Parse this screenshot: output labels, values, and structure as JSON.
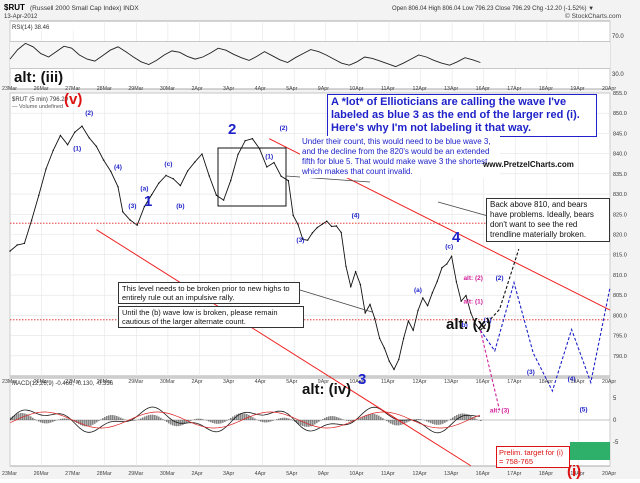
{
  "header": {
    "symbol": "$RUT",
    "name": "(Russell 2000 Small Cap Index) INDX",
    "date": "13-Apr-2012",
    "quote": "Open 806.04   High 806.04   Low 796.23   Close 796.29   Chg -12.20 (-1.52%) ▼",
    "copyright": "© StockCharts.com"
  },
  "rsi_panel": {
    "label": "RSI(14) 38.46",
    "ticks": [
      "70.0",
      "30.0"
    ]
  },
  "price_panel": {
    "label": "$RUT (5 min) 796.29",
    "legend": "— Volume undefined"
  },
  "macd_panel": {
    "label": "MACD(12,26,9) -0.466, -0.130, -0.336",
    "ticks": [
      "5",
      "0",
      "-5"
    ]
  },
  "annotations": {
    "alt_iii": "alt: (iii)",
    "v_label": "(v)",
    "wave_1": "1",
    "wave_2": "2",
    "wave_3": "3",
    "wave_4": "4",
    "wave_iv": "alt: (iv)",
    "alt_x": "alt: (x)",
    "final_i": "(i)",
    "note_main": "A *lot* of Ellioticians are calling the wave I've labeled as blue 3 as the end of the larger red (i).  Here's why I'm not labeling it that way.",
    "note_count": "Under their count, this would need to be blue wave 3, and the decline from the 820's would be an extended fifth for blue 5.  That would make wave 3 the shortest, which makes that count invalid.",
    "url": "www.PretzelCharts.com",
    "note_right": "Back above 810, and bears have problems.  Ideally, bears don't want to see the red trendline materially broken.",
    "note_level": "This level needs to be broken prior to new highs to entirely rule out an impulsive rally.",
    "note_until": "Until the (b) wave low is broken, please remain cautious of the larger alternate count.",
    "target": "Prelim. target for (i) = 758-765"
  },
  "chart_data": {
    "type": "line",
    "title": "$RUT (Russell 2000 Small Cap Index) INDX",
    "x_dates": [
      "23Mar",
      "26Mar",
      "27Mar",
      "28Mar",
      "29Mar",
      "30Mar",
      "2Apr",
      "3Apr",
      "4Apr",
      "5Apr",
      "9Apr",
      "10Apr",
      "11Apr",
      "12Apr",
      "13Apr",
      "16Apr",
      "17Apr",
      "18Apr",
      "19Apr",
      "20Apr"
    ],
    "ylim": [
      785,
      855
    ],
    "y_ticks": [
      790,
      795,
      800,
      805,
      810,
      815,
      820,
      825,
      830,
      835,
      840,
      845,
      850,
      855
    ],
    "grid": true,
    "price": [
      [
        0,
        815.9
      ],
      [
        3,
        817.4
      ],
      [
        6,
        817.8
      ],
      [
        9,
        823.5
      ],
      [
        12,
        829.7
      ],
      [
        15,
        836.2
      ],
      [
        18,
        840.8
      ],
      [
        21,
        844.5
      ],
      [
        24,
        842.2
      ],
      [
        27,
        845.3
      ],
      [
        30,
        846.8
      ],
      [
        33,
        843.9
      ],
      [
        36,
        841.8
      ],
      [
        39,
        838.4
      ],
      [
        42,
        835.6
      ],
      [
        45,
        831.8
      ],
      [
        47,
        825.6
      ],
      [
        50,
        823.6
      ],
      [
        53,
        822.3
      ],
      [
        56,
        826.9
      ],
      [
        59,
        829.8
      ],
      [
        62,
        832.7
      ],
      [
        65,
        834.6
      ],
      [
        68,
        833.8
      ],
      [
        71,
        832.1
      ],
      [
        74,
        835.7
      ],
      [
        77,
        837.9
      ],
      [
        80,
        839.9
      ],
      [
        83,
        834.5
      ],
      [
        86,
        829.7
      ],
      [
        89,
        828.5
      ],
      [
        92,
        833.4
      ],
      [
        95,
        839.8
      ],
      [
        98,
        843.2
      ],
      [
        101,
        843.7
      ],
      [
        104,
        841.2
      ],
      [
        107,
        836.7
      ],
      [
        110,
        837.8
      ],
      [
        113,
        834.4
      ],
      [
        116,
        833.3
      ],
      [
        118,
        824.7
      ],
      [
        120,
        822.5
      ],
      [
        122,
        818.8
      ],
      [
        124,
        818.6
      ],
      [
        126,
        820.4
      ],
      [
        128,
        821.7
      ],
      [
        130,
        822.5
      ],
      [
        132,
        823.3
      ],
      [
        134,
        822.0
      ],
      [
        136,
        822.1
      ],
      [
        138,
        820.5
      ],
      [
        140,
        812.1
      ],
      [
        142,
        807.1
      ],
      [
        144,
        810.8
      ],
      [
        146,
        807.6
      ],
      [
        148,
        800.6
      ],
      [
        150,
        802.7
      ],
      [
        152,
        799.2
      ],
      [
        154,
        794.3
      ],
      [
        156,
        791.9
      ],
      [
        158,
        788.7
      ],
      [
        160,
        786.6
      ],
      [
        162,
        789.1
      ],
      [
        164,
        794.3
      ],
      [
        166,
        798.6
      ],
      [
        168,
        796.3
      ],
      [
        170,
        801.2
      ],
      [
        172,
        804.3
      ],
      [
        174,
        802.4
      ],
      [
        176,
        805.6
      ],
      [
        178,
        808.4
      ],
      [
        180,
        811.8
      ],
      [
        182,
        812.7
      ],
      [
        184,
        814.6
      ],
      [
        186,
        808.3
      ],
      [
        188,
        803.5
      ],
      [
        190,
        804.9
      ],
      [
        192,
        800.6
      ],
      [
        194,
        797.8
      ],
      [
        196,
        796.3
      ]
    ],
    "projection": [
      {
        "name": "primary",
        "color": "#1e22c8",
        "points": [
          [
            196,
            796.3
          ],
          [
            202,
            791.2
          ],
          [
            210,
            808.1
          ],
          [
            218,
            790.7
          ],
          [
            226,
            781.3
          ],
          [
            234,
            796.5
          ],
          [
            242,
            783.4
          ],
          [
            250,
            806.9
          ]
        ]
      },
      {
        "name": "alternate",
        "color": "#111111",
        "points": [
          [
            196,
            796.3
          ],
          [
            204,
            801.5
          ],
          [
            212,
            816.4
          ]
        ]
      },
      {
        "name": "alt-c",
        "color": "#d0209a",
        "points": [
          [
            196,
            796.3
          ],
          [
            204,
            776.5
          ]
        ]
      }
    ],
    "trendlines": [
      {
        "color": "#ee2020",
        "from": [
          108,
          843.7
        ],
        "to": [
          250,
          801.3
        ]
      },
      {
        "color": "#ee2020",
        "from": [
          36,
          821.2
        ],
        "to": [
          192,
          762.8
        ]
      }
    ],
    "levels": [
      {
        "color": "#dd2222",
        "style": "dotted",
        "value": 822.8
      },
      {
        "color": "#dd2222",
        "style": "dotted",
        "value": 798.9
      }
    ],
    "wave_labels": [
      {
        "t": 33,
        "v": 849.5,
        "text": "(2)",
        "color": "#1e22c8"
      },
      {
        "t": 28,
        "v": 840.8,
        "text": "(1)",
        "color": "#1e22c8"
      },
      {
        "t": 45,
        "v": 836.2,
        "text": "(4)",
        "color": "#1e22c8"
      },
      {
        "t": 51,
        "v": 826.6,
        "text": "(3)",
        "color": "#1e22c8"
      },
      {
        "t": 56,
        "v": 830.9,
        "text": "(a)",
        "color": "#1e22c8"
      },
      {
        "t": 66,
        "v": 836.9,
        "text": "(c)",
        "color": "#1e22c8"
      },
      {
        "t": 71,
        "v": 826.5,
        "text": "(b)",
        "color": "#1e22c8"
      },
      {
        "t": 114,
        "v": 845.8,
        "text": "(2)",
        "color": "#1e22c8"
      },
      {
        "t": 108,
        "v": 838.8,
        "text": "(1)",
        "color": "#1e22c8"
      },
      {
        "t": 144,
        "v": 824.2,
        "text": "(4)",
        "color": "#1e22c8"
      },
      {
        "t": 121,
        "v": 818.2,
        "text": "(3)",
        "color": "#1e22c8"
      },
      {
        "t": 170,
        "v": 805.8,
        "text": "(a)",
        "color": "#1e22c8"
      },
      {
        "t": 183,
        "v": 816.5,
        "text": "(c)",
        "color": "#1e22c8"
      },
      {
        "t": 189,
        "v": 797.1,
        "text": "(b)",
        "color": "#1e22c8"
      },
      {
        "t": 193,
        "v": 808.8,
        "text": "alt: (2)",
        "color": "#d0209a"
      },
      {
        "t": 193,
        "v": 802.9,
        "text": "alt: (1)",
        "color": "#d0209a"
      },
      {
        "t": 204,
        "v": 808.7,
        "text": "(2)",
        "color": "#1e22c8"
      },
      {
        "t": 199,
        "v": 798.4,
        "text": "(1)",
        "color": "#1e22c8"
      },
      {
        "t": 217,
        "v": 785.5,
        "text": "(3)",
        "color": "#1e22c8"
      },
      {
        "t": 234,
        "v": 783.8,
        "text": "(4)",
        "color": "#1e22c8"
      },
      {
        "t": 239,
        "v": 776.2,
        "text": "(5)",
        "color": "#1e22c8"
      },
      {
        "t": 204,
        "v": 776.0,
        "text": "alt: (3)",
        "color": "#d0209a"
      }
    ],
    "rsi": [
      44,
      58,
      67,
      62,
      52,
      47,
      55,
      63,
      60,
      50,
      44,
      41,
      49,
      57,
      62,
      55,
      47,
      40,
      36,
      42,
      50,
      56,
      54,
      48,
      44,
      47,
      53,
      60,
      57,
      51,
      46,
      42,
      48,
      55,
      49,
      43,
      39,
      46,
      52,
      58,
      55,
      50,
      44,
      38,
      35,
      40,
      47,
      45,
      41,
      37,
      33,
      38,
      44,
      50,
      47,
      42,
      38,
      35,
      40,
      46,
      43,
      39
    ]
  }
}
